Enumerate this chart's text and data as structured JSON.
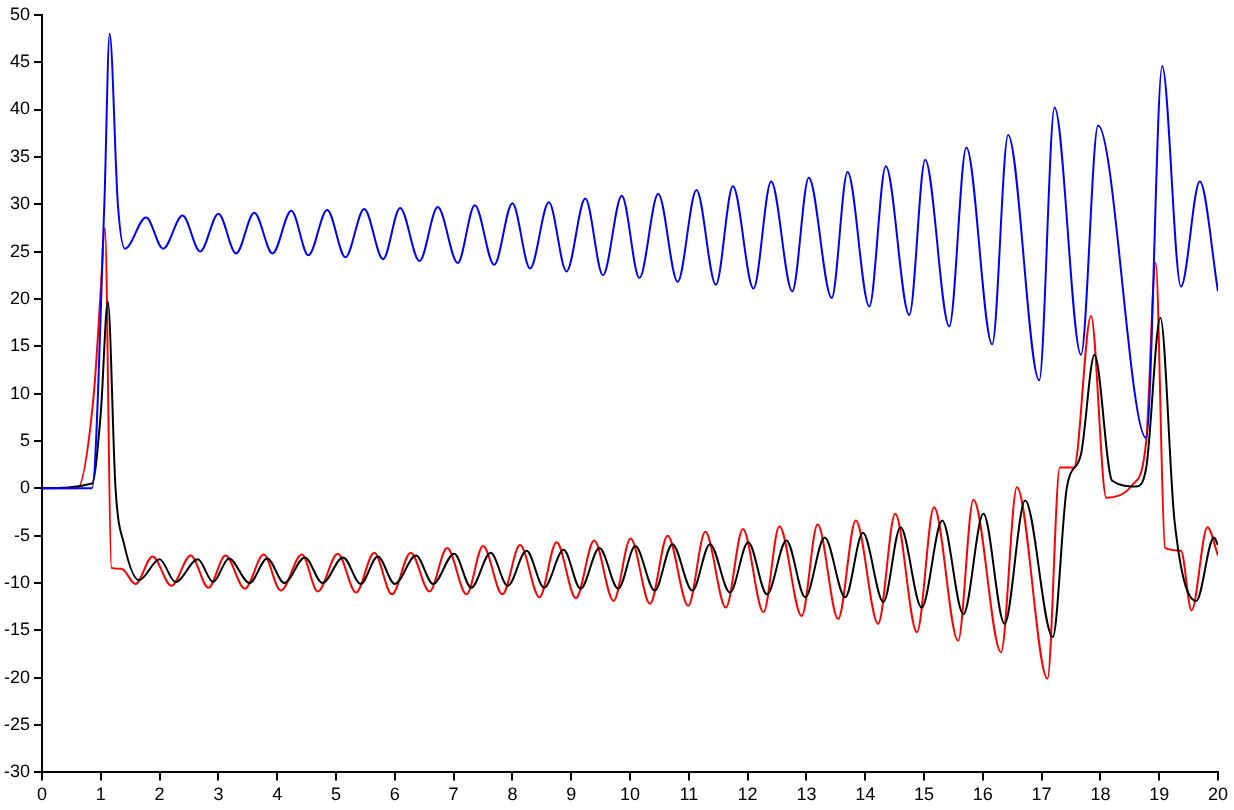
{
  "chart_data": {
    "type": "line",
    "xlim": [
      0,
      20
    ],
    "xticks": [
      0,
      1,
      2,
      3,
      4,
      5,
      6,
      7,
      8,
      9,
      10,
      11,
      12,
      13,
      14,
      15,
      16,
      17,
      18,
      19,
      20
    ],
    "ylim": [
      -30,
      50
    ],
    "yticks": [
      -30,
      -25,
      -20,
      -15,
      -10,
      -5,
      0,
      5,
      10,
      15,
      20,
      25,
      30,
      35,
      40,
      45,
      50
    ],
    "grid": false,
    "legend": false,
    "series": [
      {
        "color": "#0000ff",
        "x": [
          0,
          0.85,
          1.06,
          1.15,
          1.29,
          1.41,
          1.77,
          2.06,
          2.39,
          2.69,
          3.0,
          3.3,
          3.61,
          3.92,
          4.24,
          4.53,
          4.85,
          5.16,
          5.48,
          5.8,
          6.09,
          6.42,
          6.73,
          7.07,
          7.36,
          7.69,
          8.0,
          8.3,
          8.62,
          8.92,
          9.24,
          9.54,
          9.86,
          10.16,
          10.48,
          10.81,
          11.13,
          11.46,
          11.75,
          12.1,
          12.4,
          12.76,
          13.04,
          13.43,
          13.7,
          14.07,
          14.35,
          14.75,
          15.02,
          15.43,
          15.72,
          16.16,
          16.43,
          16.96,
          17.22,
          17.67,
          17.96,
          18.78,
          19.05,
          19.37,
          19.69,
          20
        ],
        "values": [
          0,
          0,
          30,
          48,
          30,
          25.3,
          28.6,
          25.3,
          28.8,
          25.0,
          29.0,
          24.8,
          29.1,
          24.8,
          29.3,
          24.6,
          29.4,
          24.4,
          29.5,
          24.2,
          29.6,
          24.0,
          29.7,
          23.8,
          29.9,
          23.6,
          30.1,
          23.2,
          30.2,
          22.9,
          30.6,
          22.5,
          30.9,
          22.2,
          31.1,
          21.8,
          31.5,
          21.5,
          31.9,
          21.1,
          32.4,
          20.8,
          32.8,
          20.1,
          33.4,
          19.2,
          34.0,
          18.3,
          34.7,
          17.1,
          36.0,
          15.2,
          37.3,
          11.4,
          40.2,
          14.1,
          38.3,
          5.3,
          44.6,
          21.3,
          32.4,
          20.8
        ]
      },
      {
        "color": "#000000",
        "x": [
          0,
          0.85,
          1.0,
          1.12,
          1.25,
          1.4,
          1.65,
          2.0,
          2.27,
          2.65,
          2.91,
          3.18,
          3.53,
          3.83,
          4.12,
          4.47,
          4.77,
          5.12,
          5.42,
          5.71,
          6.0,
          6.36,
          6.65,
          7.01,
          7.3,
          7.63,
          7.92,
          8.24,
          8.54,
          8.87,
          9.16,
          9.48,
          9.8,
          10.09,
          10.42,
          10.72,
          11.06,
          11.36,
          11.7,
          12.01,
          12.33,
          12.66,
          12.98,
          13.31,
          13.66,
          13.96,
          14.31,
          14.6,
          14.96,
          15.31,
          15.67,
          16.01,
          16.37,
          16.72,
          17.19,
          17.43,
          17.67,
          17.9,
          18.2,
          18.61,
          18.78,
          19.02,
          19.26,
          19.63,
          19.93,
          20
        ],
        "values": [
          0,
          0.5,
          8,
          19.7,
          0,
          -6,
          -9.7,
          -7.5,
          -9.9,
          -7.5,
          -9.9,
          -7.4,
          -10.0,
          -7.4,
          -10.0,
          -7.3,
          -10.0,
          -7.3,
          -10.1,
          -7.2,
          -10.1,
          -7.1,
          -10.1,
          -6.9,
          -10.5,
          -6.8,
          -10.3,
          -6.6,
          -10.5,
          -6.5,
          -10.6,
          -6.3,
          -10.6,
          -6.1,
          -10.8,
          -5.9,
          -10.8,
          -5.9,
          -11.0,
          -5.7,
          -11.2,
          -5.5,
          -11.5,
          -5.2,
          -11.5,
          -4.7,
          -12.0,
          -4.1,
          -12.6,
          -3.4,
          -13.3,
          -2.7,
          -14.3,
          -1.3,
          -15.7,
          0.1,
          3.6,
          14.1,
          0.8,
          0.2,
          2.2,
          18.0,
          -3.4,
          -11.9,
          -5.2,
          -6.0
        ]
      },
      {
        "color": "#ff0000",
        "x": [
          0,
          0.6,
          0.88,
          0.99,
          1.07,
          1.18,
          1.35,
          1.59,
          1.88,
          2.2,
          2.53,
          2.83,
          3.12,
          3.45,
          3.77,
          4.06,
          4.42,
          4.69,
          5.03,
          5.34,
          5.65,
          5.95,
          6.27,
          6.59,
          6.89,
          7.22,
          7.5,
          7.83,
          8.13,
          8.46,
          8.75,
          9.08,
          9.39,
          9.72,
          10.01,
          10.34,
          10.64,
          10.99,
          11.28,
          11.63,
          11.92,
          12.27,
          12.54,
          12.92,
          13.19,
          13.54,
          13.84,
          14.22,
          14.51,
          14.88,
          15.17,
          15.58,
          15.84,
          16.31,
          16.58,
          17.1,
          17.31,
          17.55,
          17.84,
          18.1,
          18.55,
          18.78,
          18.94,
          19.1,
          19.37,
          19.55,
          19.82,
          20
        ],
        "values": [
          0,
          0,
          9.9,
          20,
          27.5,
          -8.4,
          -8.5,
          -10.1,
          -7.2,
          -10.3,
          -7.1,
          -10.5,
          -7.1,
          -10.6,
          -7.0,
          -10.8,
          -7.0,
          -10.9,
          -6.9,
          -11.0,
          -6.8,
          -11.2,
          -6.8,
          -10.9,
          -6.3,
          -11.2,
          -6.1,
          -11.2,
          -6.0,
          -11.5,
          -5.7,
          -11.6,
          -5.5,
          -11.9,
          -5.3,
          -12.2,
          -5.0,
          -12.4,
          -4.6,
          -12.6,
          -4.3,
          -13.1,
          -4.0,
          -13.5,
          -3.8,
          -13.8,
          -3.4,
          -14.3,
          -2.7,
          -15.2,
          -2.0,
          -16.1,
          -1.2,
          -17.3,
          0.1,
          -20.1,
          2.2,
          2.2,
          18.2,
          -1.0,
          0.4,
          5.0,
          23.8,
          -6.3,
          -6.6,
          -12.9,
          -4.1,
          -7.1
        ]
      }
    ]
  }
}
